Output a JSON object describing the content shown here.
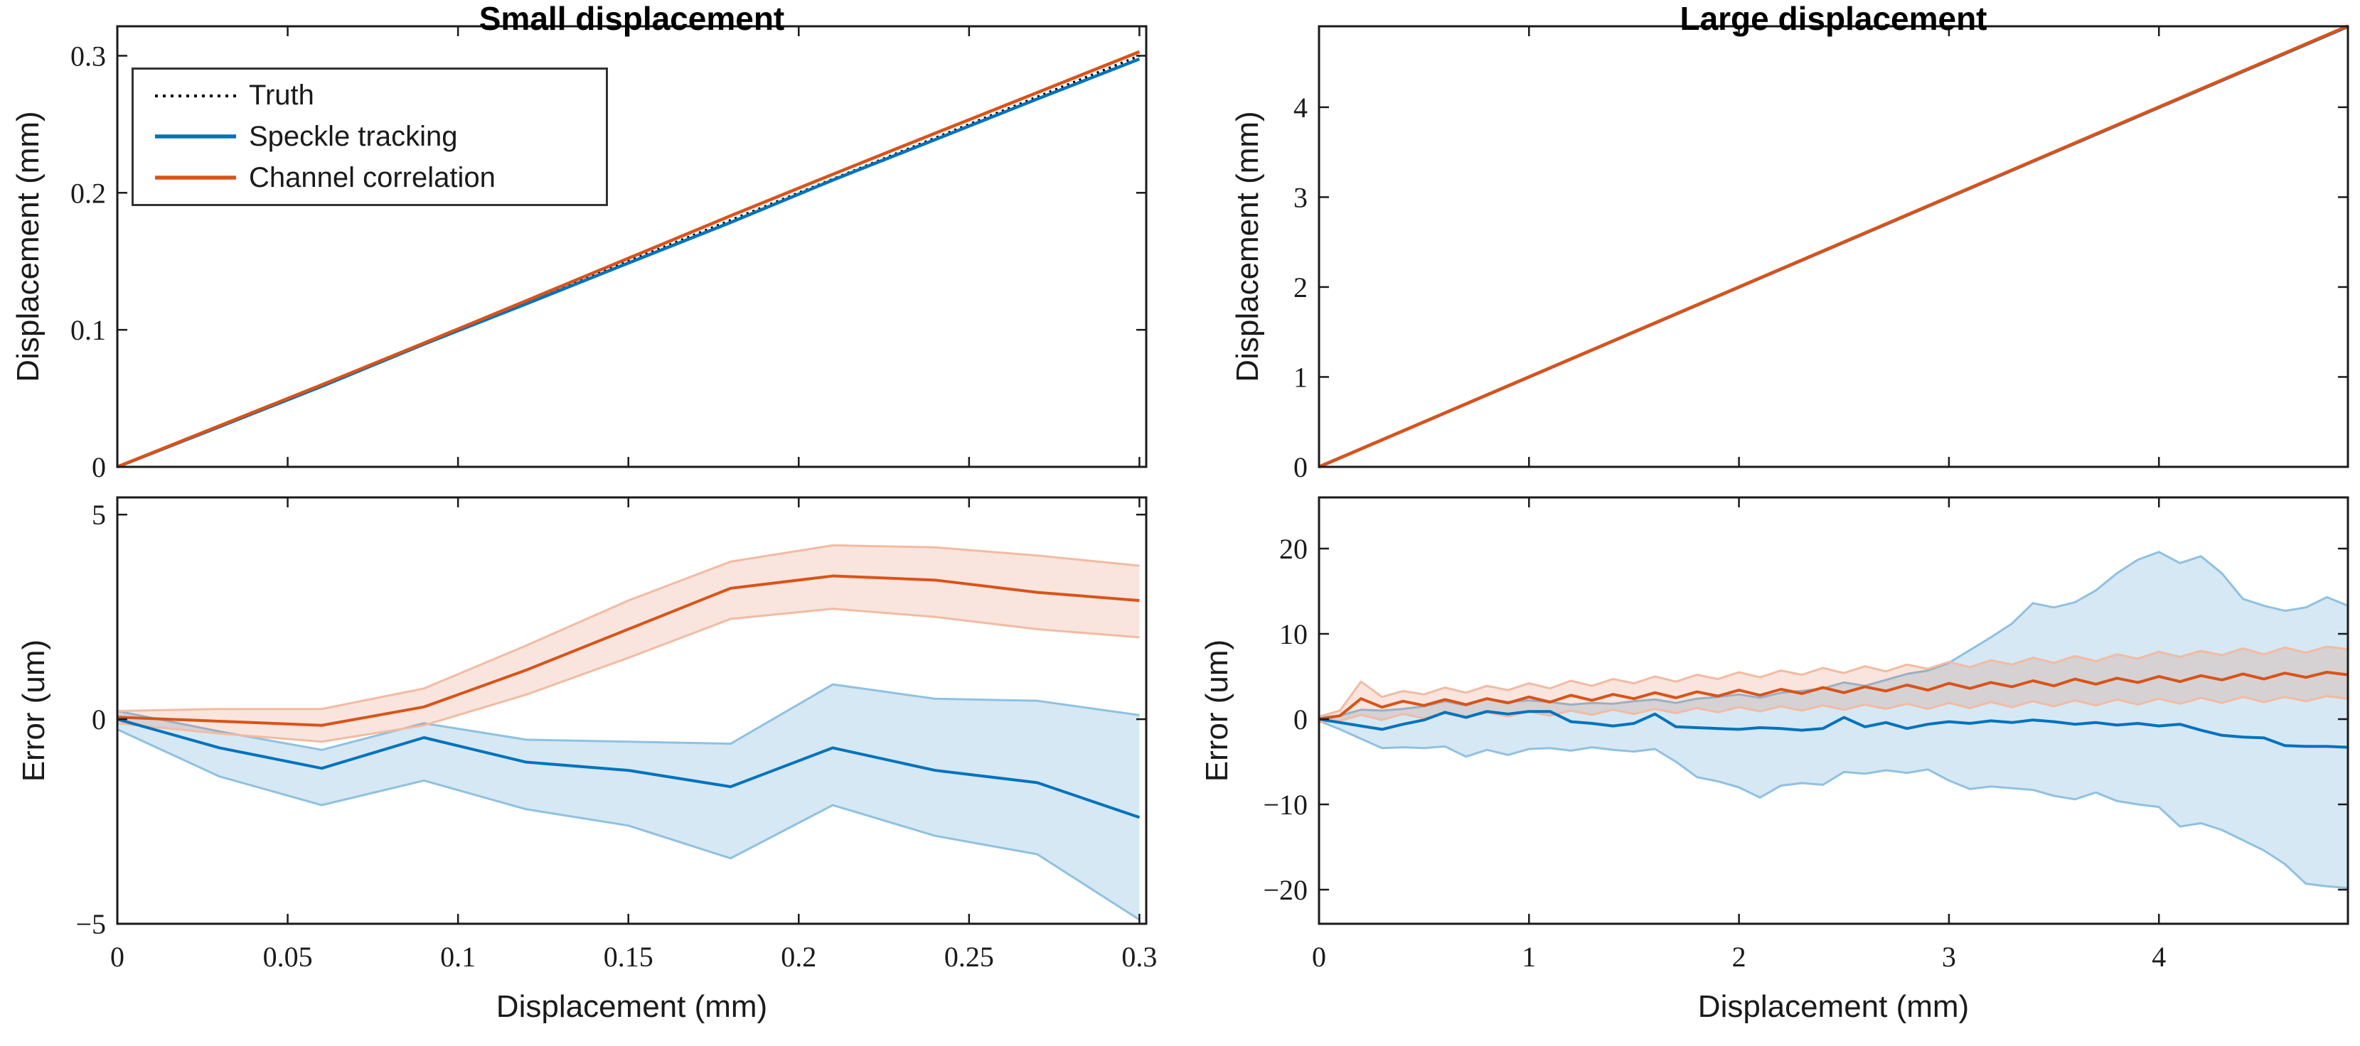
{
  "figure": {
    "titles": {
      "left": "Small displacement",
      "right": "Large displacement"
    },
    "xlabels": {
      "left": "Displacement (mm)",
      "right": "Displacement (mm)"
    },
    "ylabels": {
      "top_left": "Displacement (mm)",
      "top_right": "Displacement (mm)",
      "bottom_left": "Error (um)",
      "bottom_right": "Error (um)"
    },
    "legend": {
      "items": [
        {
          "label": "Truth",
          "style": "dotted",
          "color": "#000000"
        },
        {
          "label": "Speckle tracking",
          "style": "solid",
          "color": "#0072BD"
        },
        {
          "label": "Channel correlation",
          "style": "solid",
          "color": "#D95319"
        }
      ]
    },
    "colors": {
      "axis": "#1a1a1a",
      "truth": "#000000",
      "speckle": "#0072BD",
      "channel": "#D95319",
      "speckle_band_fill": "rgba(0,114,189,0.16)",
      "speckle_band_edge": "#8fc1e1",
      "channel_band_fill": "rgba(217,83,25,0.15)",
      "channel_band_edge": "#f2bba2"
    }
  },
  "chart_data": [
    {
      "id": "small-displacement",
      "type": "line",
      "title": "Small displacement",
      "ylabel": "Displacement (mm)",
      "xlim": [
        0,
        0.302
      ],
      "ylim": [
        0,
        0.3215
      ],
      "xticks": [
        0,
        0.05,
        0.1,
        0.15,
        0.2,
        0.25,
        0.3
      ],
      "xtick_labels": [],
      "yticks": [
        0,
        0.1,
        0.2,
        0.3
      ],
      "ytick_labels": [
        "0",
        "0.1",
        "0.2",
        "0.3"
      ],
      "bands": [],
      "series": [
        {
          "name": "Truth",
          "color": "#000000",
          "style": "dotted",
          "width": 3.5,
          "x": [
            0,
            0.3
          ],
          "y": [
            0,
            0.3
          ]
        },
        {
          "name": "Speckle tracking",
          "color": "#0072BD",
          "style": "solid",
          "width": 4.5,
          "x": [
            0,
            0.03,
            0.06,
            0.09,
            0.12,
            0.15,
            0.18,
            0.21,
            0.24,
            0.27,
            0.3
          ],
          "y": [
            0,
            0.0293,
            0.0588,
            0.08955,
            0.11895,
            0.14875,
            0.17835,
            0.2093,
            0.23875,
            0.26845,
            0.2976
          ]
        },
        {
          "name": "Channel correlation",
          "color": "#D95319",
          "style": "solid",
          "width": 4.5,
          "x": [
            0,
            0.03,
            0.06,
            0.09,
            0.12,
            0.15,
            0.18,
            0.21,
            0.24,
            0.27,
            0.3
          ],
          "y": [
            5e-05,
            0.02995,
            0.05985,
            0.0903,
            0.1212,
            0.1522,
            0.1832,
            0.2135,
            0.2434,
            0.2731,
            0.3029
          ]
        }
      ]
    },
    {
      "id": "large-displacement",
      "type": "line",
      "title": "Large displacement",
      "ylabel": "Displacement (mm)",
      "xlim": [
        0,
        4.9
      ],
      "ylim": [
        0,
        4.9
      ],
      "xticks": [
        0,
        1,
        2,
        3,
        4
      ],
      "xtick_labels": [],
      "yticks": [
        0,
        1,
        2,
        3,
        4
      ],
      "ytick_labels": [
        "0",
        "1",
        "2",
        "3",
        "4"
      ],
      "bands": [],
      "series": [
        {
          "name": "Truth",
          "color": "#000000",
          "style": "dotted",
          "width": 3.5,
          "x": [
            0,
            4.9
          ],
          "y": [
            0,
            4.9
          ]
        },
        {
          "name": "Speckle tracking",
          "color": "#0072BD",
          "style": "solid",
          "width": 4.5,
          "x": [
            0,
            4.9
          ],
          "y": [
            0,
            4.897
          ]
        },
        {
          "name": "Channel correlation",
          "color": "#D95319",
          "style": "solid",
          "width": 4.5,
          "x": [
            0,
            4.9
          ],
          "y": [
            0,
            4.903
          ]
        }
      ]
    },
    {
      "id": "small-error",
      "type": "line",
      "xlabel": "Displacement (mm)",
      "ylabel": "Error (um)",
      "xlim": [
        0,
        0.302
      ],
      "ylim": [
        -5,
        5.42
      ],
      "xticks": [
        0,
        0.05,
        0.1,
        0.15,
        0.2,
        0.25,
        0.3
      ],
      "xtick_labels": [
        "0",
        "0.05",
        "0.1",
        "0.15",
        "0.2",
        "0.25",
        "0.3"
      ],
      "yticks": [
        -5,
        0,
        5
      ],
      "ytick_labels": [
        "−5",
        "0",
        "5"
      ],
      "bands": [
        {
          "name": "Speckle tracking band",
          "fill": "rgba(0,114,189,0.16)",
          "edge": "#8fc1e1",
          "x": [
            0,
            0.03,
            0.06,
            0.09,
            0.12,
            0.15,
            0.18,
            0.21,
            0.24,
            0.27,
            0.3
          ],
          "upper": [
            0.2,
            -0.3,
            -0.75,
            -0.1,
            -0.5,
            -0.55,
            -0.6,
            0.85,
            0.5,
            0.45,
            0.1
          ],
          "lower": [
            -0.25,
            -1.4,
            -2.1,
            -1.5,
            -2.2,
            -2.6,
            -3.4,
            -2.1,
            -2.85,
            -3.3,
            -4.9
          ]
        },
        {
          "name": "Channel correlation band",
          "fill": "rgba(217,83,25,0.15)",
          "edge": "#f2bba2",
          "x": [
            0,
            0.03,
            0.06,
            0.09,
            0.12,
            0.15,
            0.18,
            0.21,
            0.24,
            0.27,
            0.3
          ],
          "upper": [
            0.2,
            0.25,
            0.25,
            0.75,
            1.8,
            2.9,
            3.85,
            4.25,
            4.2,
            4.0,
            3.75
          ],
          "lower": [
            -0.1,
            -0.35,
            -0.55,
            -0.15,
            0.6,
            1.5,
            2.45,
            2.7,
            2.5,
            2.2,
            2.0
          ]
        }
      ],
      "series": [
        {
          "name": "Speckle tracking error",
          "color": "#0072BD",
          "style": "solid",
          "width": 4,
          "x": [
            0,
            0.03,
            0.06,
            0.09,
            0.12,
            0.15,
            0.18,
            0.21,
            0.24,
            0.27,
            0.3
          ],
          "y": [
            0,
            -0.7,
            -1.2,
            -0.45,
            -1.05,
            -1.25,
            -1.65,
            -0.7,
            -1.25,
            -1.55,
            -2.4
          ]
        },
        {
          "name": "Channel correlation error",
          "color": "#D95319",
          "style": "solid",
          "width": 4,
          "x": [
            0,
            0.03,
            0.06,
            0.09,
            0.12,
            0.15,
            0.18,
            0.21,
            0.24,
            0.27,
            0.3
          ],
          "y": [
            0.05,
            -0.05,
            -0.15,
            0.3,
            1.2,
            2.2,
            3.2,
            3.5,
            3.4,
            3.1,
            2.9
          ]
        }
      ]
    },
    {
      "id": "large-error",
      "type": "line",
      "xlabel": "Displacement (mm)",
      "ylabel": "Error (um)",
      "xlim": [
        0,
        4.9
      ],
      "ylim": [
        -24,
        26
      ],
      "xticks": [
        0,
        1,
        2,
        3,
        4
      ],
      "xtick_labels": [
        "0",
        "1",
        "2",
        "3",
        "4"
      ],
      "yticks": [
        -20,
        -10,
        0,
        10,
        20
      ],
      "ytick_labels": [
        "−20",
        "−10",
        "0",
        "10",
        "20"
      ],
      "bands": [
        {
          "name": "Speckle tracking band",
          "fill": "rgba(0,114,189,0.16)",
          "edge": "#8fc1e1",
          "x": [
            0,
            0.1,
            0.2,
            0.3,
            0.4,
            0.5,
            0.6,
            0.7,
            0.8,
            0.9,
            1.0,
            1.1,
            1.2,
            1.3,
            1.4,
            1.5,
            1.6,
            1.7,
            1.8,
            1.9,
            2.0,
            2.1,
            2.2,
            2.3,
            2.4,
            2.5,
            2.6,
            2.7,
            2.8,
            2.9,
            3.0,
            3.1,
            3.2,
            3.3,
            3.4,
            3.5,
            3.6,
            3.7,
            3.8,
            3.9,
            4.0,
            4.1,
            4.2,
            4.3,
            4.4,
            4.5,
            4.6,
            4.7,
            4.8,
            4.9
          ],
          "upper": [
            0.2,
            0.4,
            1.1,
            1.0,
            1.2,
            1.5,
            2.1,
            1.6,
            2.4,
            2.0,
            2.2,
            2.0,
            1.7,
            1.9,
            1.8,
            2.1,
            2.3,
            1.9,
            2.4,
            2.6,
            2.9,
            2.5,
            3.1,
            3.3,
            3.6,
            4.3,
            3.9,
            4.6,
            5.3,
            5.7,
            6.6,
            8.1,
            9.6,
            11.2,
            13.6,
            13.1,
            13.7,
            15.1,
            17.1,
            18.7,
            19.6,
            18.3,
            19.1,
            17.1,
            14.1,
            13.3,
            12.7,
            13.1,
            14.3,
            13.3
          ],
          "lower": [
            -0.2,
            -1.2,
            -2.3,
            -3.4,
            -3.3,
            -3.4,
            -3.2,
            -4.4,
            -3.6,
            -4.2,
            -3.5,
            -3.4,
            -3.7,
            -3.3,
            -3.6,
            -3.8,
            -3.5,
            -5.0,
            -6.8,
            -7.3,
            -8.0,
            -9.2,
            -7.8,
            -7.5,
            -7.7,
            -6.2,
            -6.4,
            -6.0,
            -6.3,
            -5.9,
            -7.2,
            -8.2,
            -7.9,
            -8.1,
            -8.3,
            -9.0,
            -9.4,
            -8.6,
            -9.6,
            -10.0,
            -10.3,
            -12.6,
            -12.2,
            -13.0,
            -14.2,
            -15.4,
            -17.0,
            -19.3,
            -19.6,
            -19.8
          ]
        },
        {
          "name": "Channel correlation band",
          "fill": "rgba(217,83,25,0.15)",
          "edge": "#f2bba2",
          "x": [
            0,
            0.1,
            0.2,
            0.3,
            0.4,
            0.5,
            0.6,
            0.7,
            0.8,
            0.9,
            1.0,
            1.1,
            1.2,
            1.3,
            1.4,
            1.5,
            1.6,
            1.7,
            1.8,
            1.9,
            2.0,
            2.1,
            2.2,
            2.3,
            2.4,
            2.5,
            2.6,
            2.7,
            2.8,
            2.9,
            3.0,
            3.1,
            3.2,
            3.3,
            3.4,
            3.5,
            3.6,
            3.7,
            3.8,
            3.9,
            4.0,
            4.1,
            4.2,
            4.3,
            4.4,
            4.5,
            4.6,
            4.7,
            4.8,
            4.9
          ],
          "upper": [
            0.3,
            1.0,
            4.4,
            2.6,
            3.3,
            2.9,
            3.7,
            3.1,
            3.9,
            3.4,
            4.2,
            3.6,
            4.5,
            3.9,
            4.7,
            4.2,
            5.0,
            4.4,
            5.2,
            4.7,
            5.5,
            4.9,
            5.7,
            5.2,
            6.0,
            5.4,
            6.2,
            5.6,
            6.4,
            5.9,
            6.7,
            6.1,
            6.9,
            6.4,
            7.2,
            6.6,
            7.4,
            6.8,
            7.6,
            7.1,
            7.9,
            7.3,
            8.0,
            7.5,
            8.3,
            7.6,
            8.4,
            7.8,
            8.5,
            8.2
          ],
          "lower": [
            -0.3,
            -0.2,
            0.5,
            -0.1,
            0.6,
            0.1,
            0.7,
            0.2,
            0.8,
            0.3,
            0.9,
            0.4,
            1.0,
            0.5,
            1.1,
            0.6,
            1.2,
            0.7,
            1.3,
            0.8,
            1.4,
            0.9,
            1.5,
            1.0,
            1.6,
            1.1,
            1.7,
            1.2,
            1.8,
            1.2,
            1.9,
            1.3,
            2.0,
            1.4,
            2.1,
            1.5,
            2.2,
            1.6,
            2.3,
            1.7,
            2.4,
            1.8,
            2.5,
            1.9,
            2.6,
            2.0,
            2.6,
            2.1,
            2.7,
            2.4
          ]
        }
      ],
      "series": [
        {
          "name": "Speckle tracking error",
          "color": "#0072BD",
          "style": "solid",
          "width": 4,
          "x": [
            0,
            0.1,
            0.2,
            0.3,
            0.4,
            0.5,
            0.6,
            0.7,
            0.8,
            0.9,
            1.0,
            1.1,
            1.2,
            1.3,
            1.4,
            1.5,
            1.6,
            1.7,
            1.8,
            1.9,
            2.0,
            2.1,
            2.2,
            2.3,
            2.4,
            2.5,
            2.6,
            2.7,
            2.8,
            2.9,
            3.0,
            3.1,
            3.2,
            3.3,
            3.4,
            3.5,
            3.6,
            3.7,
            3.8,
            3.9,
            4.0,
            4.1,
            4.2,
            4.3,
            4.4,
            4.5,
            4.6,
            4.7,
            4.8,
            4.9
          ],
          "y": [
            0.0,
            -0.4,
            -0.8,
            -1.2,
            -0.6,
            -0.1,
            0.8,
            0.2,
            0.9,
            0.6,
            0.9,
            0.9,
            -0.3,
            -0.5,
            -0.8,
            -0.5,
            0.6,
            -0.9,
            -1.0,
            -1.1,
            -1.2,
            -1.0,
            -1.1,
            -1.3,
            -1.1,
            0.2,
            -0.9,
            -0.4,
            -1.1,
            -0.6,
            -0.3,
            -0.5,
            -0.2,
            -0.4,
            -0.1,
            -0.3,
            -0.6,
            -0.4,
            -0.7,
            -0.5,
            -0.8,
            -0.6,
            -1.3,
            -1.9,
            -2.1,
            -2.2,
            -3.1,
            -3.2,
            -3.2,
            -3.3
          ]
        },
        {
          "name": "Channel correlation error",
          "color": "#D95319",
          "style": "solid",
          "width": 4,
          "x": [
            0,
            0.1,
            0.2,
            0.3,
            0.4,
            0.5,
            0.6,
            0.7,
            0.8,
            0.9,
            1.0,
            1.1,
            1.2,
            1.3,
            1.4,
            1.5,
            1.6,
            1.7,
            1.8,
            1.9,
            2.0,
            2.1,
            2.2,
            2.3,
            2.4,
            2.5,
            2.6,
            2.7,
            2.8,
            2.9,
            3.0,
            3.1,
            3.2,
            3.3,
            3.4,
            3.5,
            3.6,
            3.7,
            3.8,
            3.9,
            4.0,
            4.1,
            4.2,
            4.3,
            4.4,
            4.5,
            4.6,
            4.7,
            4.8,
            4.9
          ],
          "y": [
            0.0,
            0.4,
            2.4,
            1.4,
            2.1,
            1.6,
            2.3,
            1.7,
            2.4,
            1.9,
            2.6,
            2.0,
            2.8,
            2.2,
            2.9,
            2.4,
            3.1,
            2.5,
            3.2,
            2.7,
            3.4,
            2.8,
            3.5,
            3.0,
            3.7,
            3.1,
            3.8,
            3.3,
            4.0,
            3.4,
            4.2,
            3.6,
            4.3,
            3.8,
            4.5,
            3.9,
            4.7,
            4.1,
            4.8,
            4.3,
            5.0,
            4.4,
            5.1,
            4.6,
            5.3,
            4.7,
            5.4,
            4.9,
            5.5,
            5.2
          ]
        }
      ]
    }
  ]
}
